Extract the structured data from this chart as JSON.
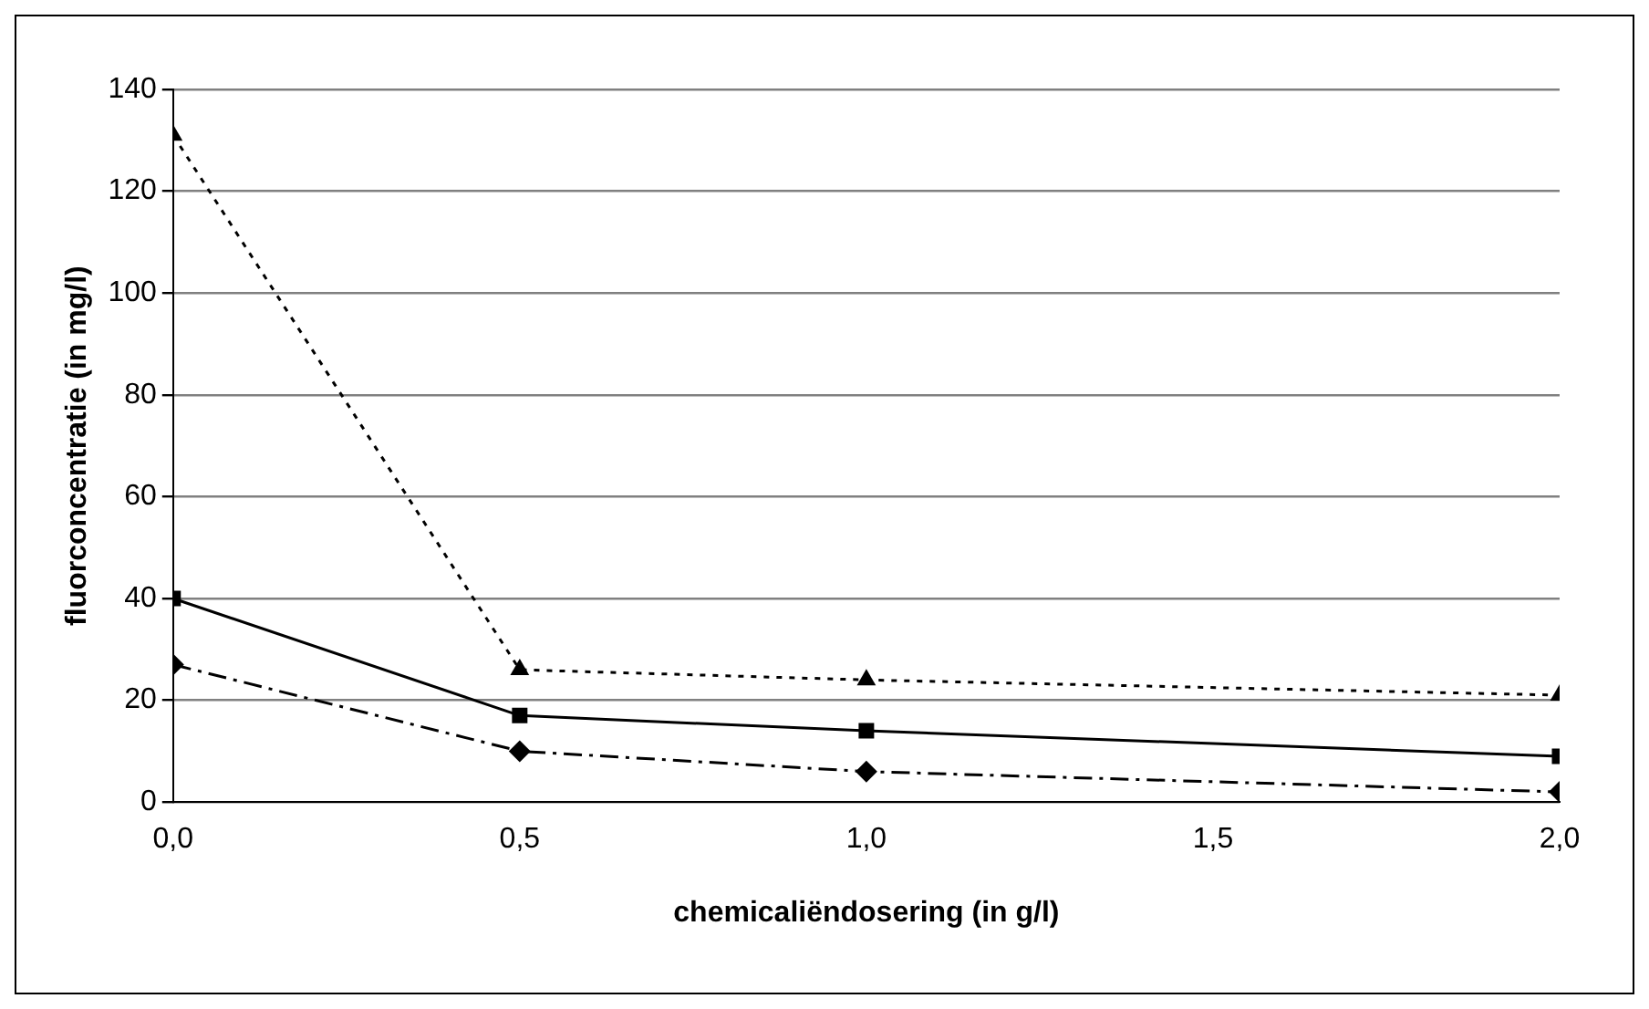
{
  "chart_data": {
    "type": "line",
    "xlabel": "chemicaliëndosering (in g/l)",
    "ylabel": "fluorconcentratie (in mg/l)",
    "x": [
      0,
      0.5,
      1,
      2
    ],
    "series": [
      {
        "color": "#000000",
        "marker": "triangle",
        "line_style": "dotted",
        "values": [
          131,
          26,
          24,
          21
        ]
      },
      {
        "color": "#000000",
        "marker": "square",
        "line_style": "solid",
        "values": [
          40,
          17,
          14,
          9
        ]
      },
      {
        "color": "#000000",
        "marker": "diamond",
        "line_style": "dashed",
        "values": [
          27,
          10,
          6,
          2
        ]
      }
    ],
    "xlim": [
      0,
      2
    ],
    "xticks": [
      {
        "value": 0,
        "label": "0,0"
      },
      {
        "value": 0.5,
        "label": "0,5"
      },
      {
        "value": 1,
        "label": "1,0"
      },
      {
        "value": 1.5,
        "label": "1,5"
      },
      {
        "value": 2,
        "label": "2,0"
      }
    ],
    "ylim": [
      0,
      140
    ],
    "yticks": [
      0,
      20,
      40,
      60,
      80,
      100,
      120,
      140
    ],
    "grid": "y",
    "legend": false
  }
}
